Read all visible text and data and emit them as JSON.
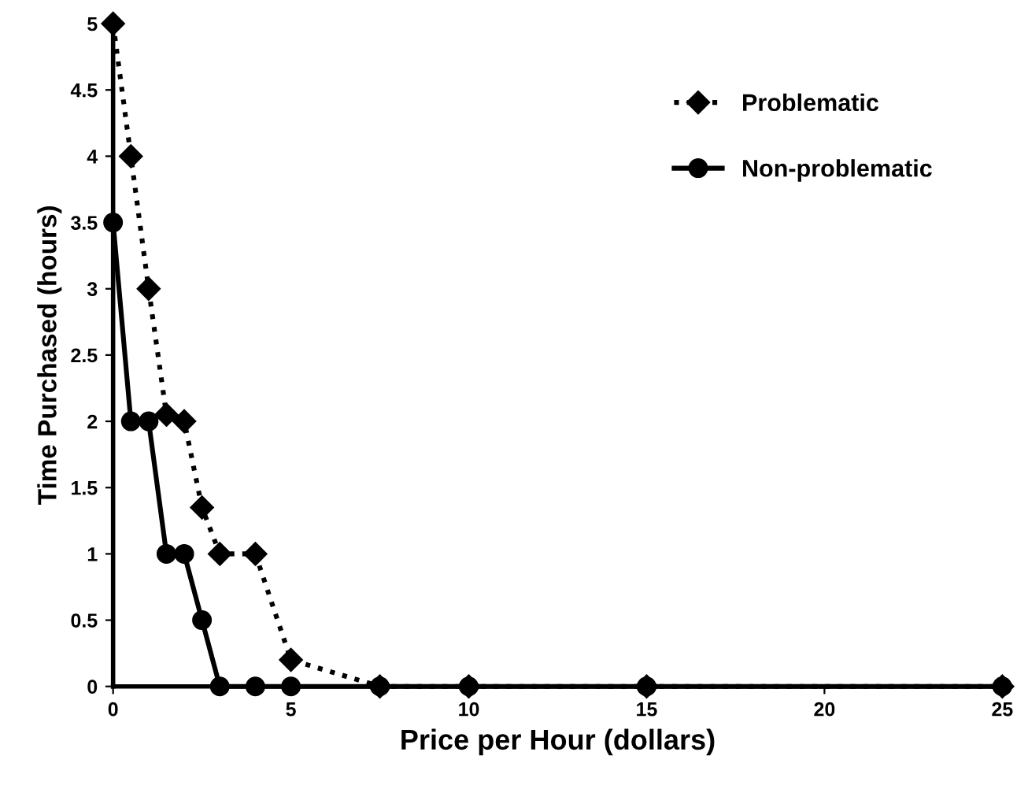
{
  "chart_data": {
    "type": "line",
    "xlabel": "Price per Hour (dollars)",
    "ylabel": "Time Purchased (hours)",
    "xlim": [
      0,
      25
    ],
    "xticks": [
      0,
      5,
      10,
      15,
      20,
      25
    ],
    "ylim": [
      0,
      5
    ],
    "yticks": [
      0,
      0.5,
      1,
      1.5,
      2,
      2.5,
      3,
      3.5,
      4,
      4.5,
      5
    ],
    "grid": false,
    "legend": "top right",
    "series": [
      {
        "name": "Problematic",
        "color": "#000000",
        "marker": "diamond",
        "line_style": "dotted",
        "x": [
          0,
          0.5,
          1,
          1.5,
          2,
          2.5,
          3,
          4,
          5,
          7.5,
          10,
          15,
          25
        ],
        "values": [
          5,
          4,
          3,
          2.05,
          2,
          1.35,
          1,
          1,
          0.2,
          0,
          0,
          0,
          0
        ]
      },
      {
        "name": "Non-problematic",
        "color": "#000000",
        "marker": "circle",
        "line_style": "solid",
        "x": [
          0,
          0.5,
          1,
          1.5,
          2,
          2.5,
          3,
          4,
          5,
          7.5,
          10,
          15,
          25
        ],
        "values": [
          3.5,
          2,
          2,
          1,
          1,
          0.5,
          0,
          0,
          0,
          0,
          0,
          0,
          0
        ]
      }
    ]
  }
}
